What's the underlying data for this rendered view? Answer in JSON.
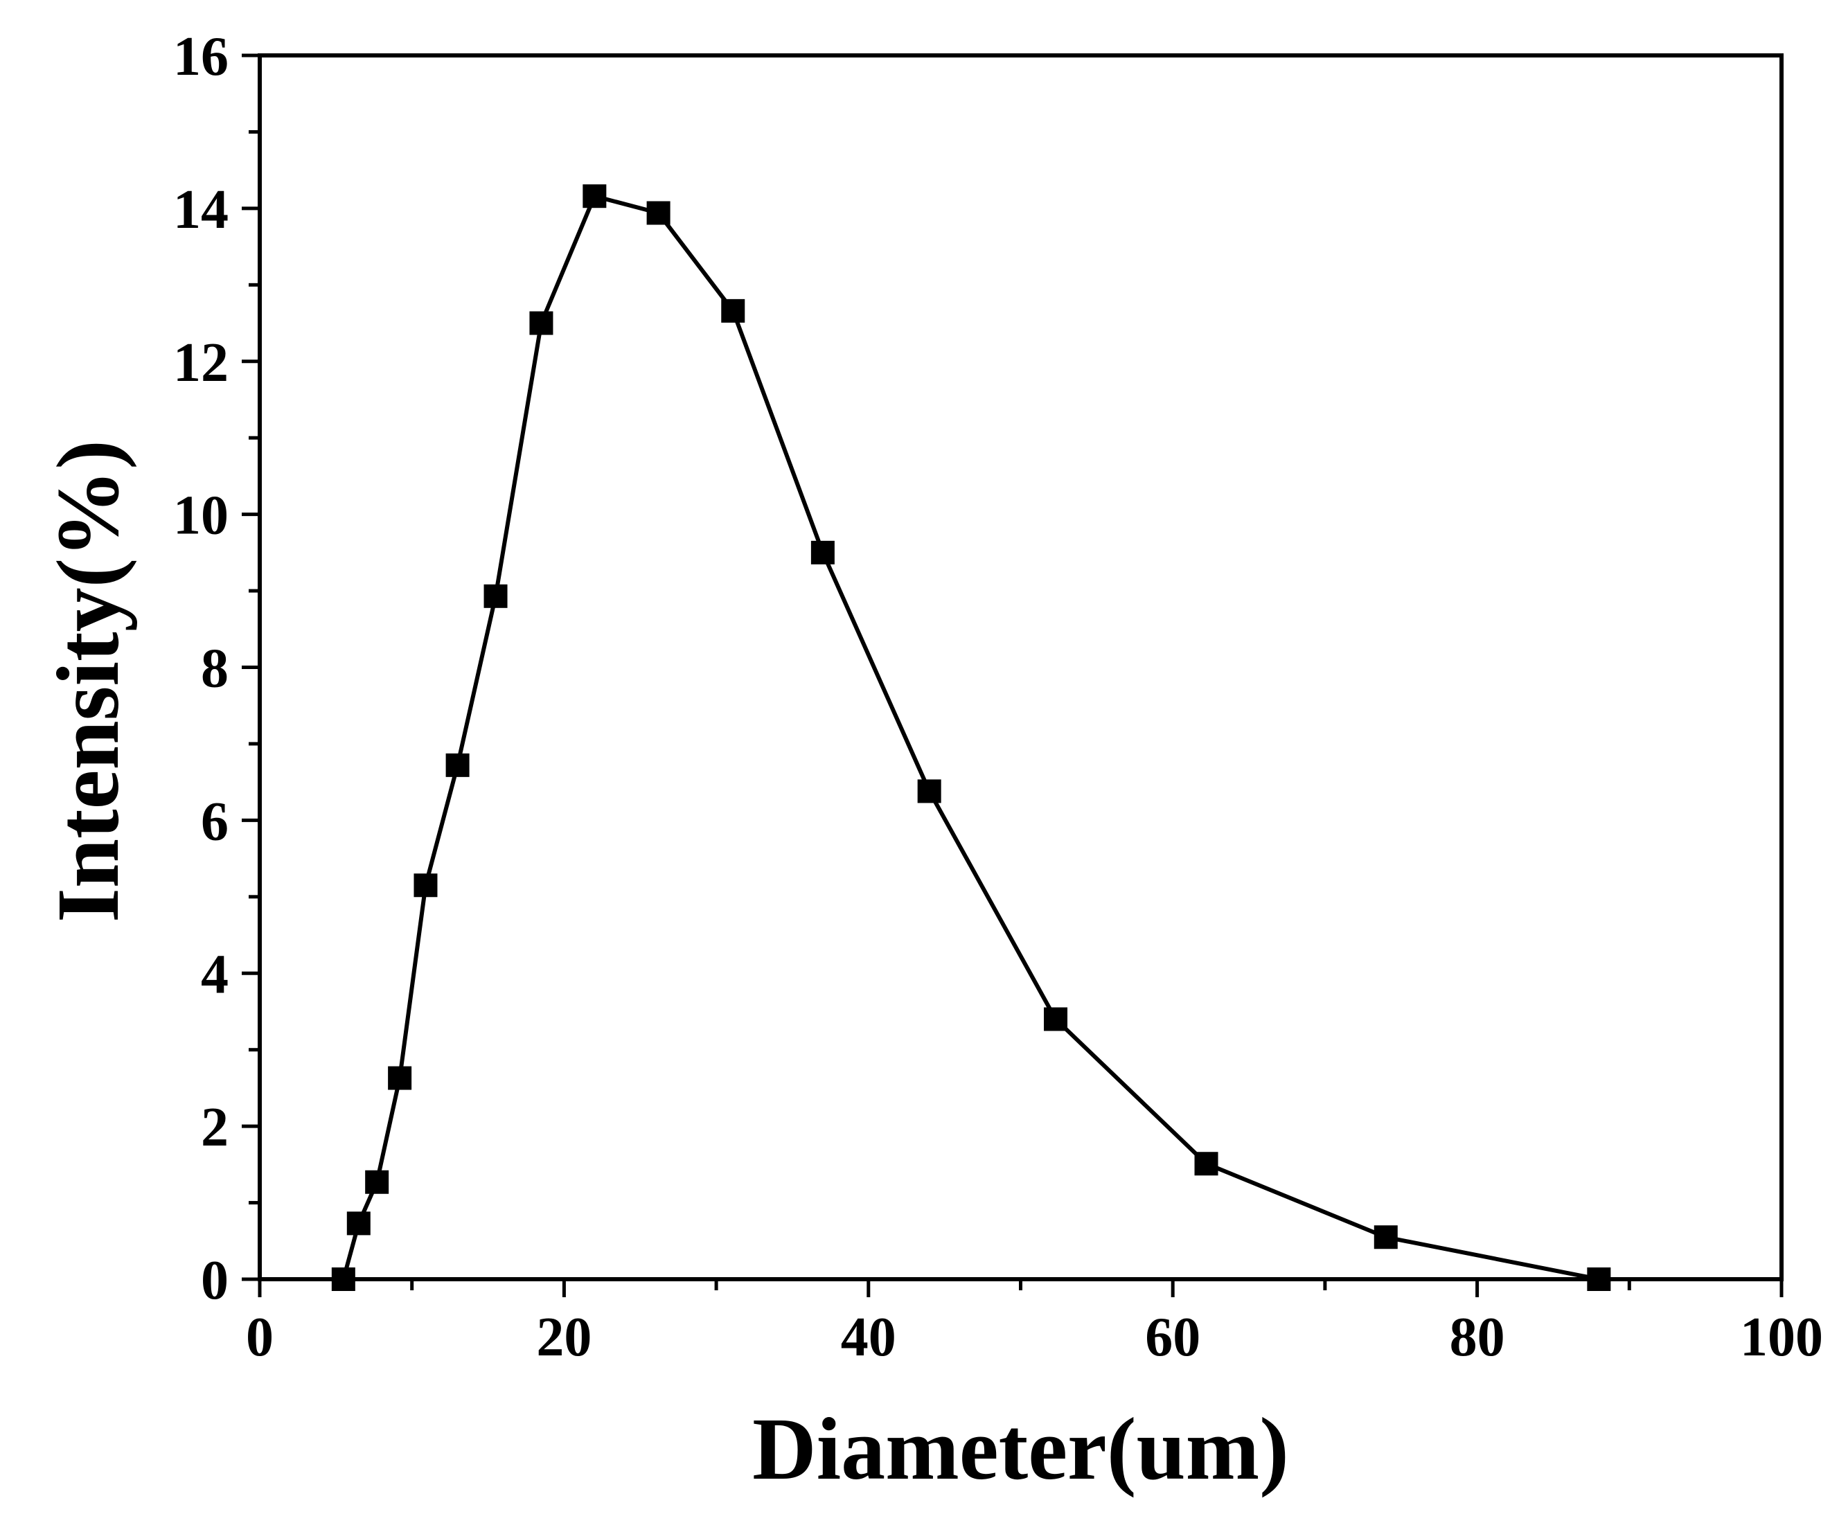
{
  "chart_data": {
    "type": "line",
    "title": "",
    "xlabel": "Diameter(um)",
    "ylabel": "Intensity(%)",
    "xlim": [
      0,
      100
    ],
    "ylim": [
      0,
      16
    ],
    "x_ticks": [
      0,
      20,
      40,
      60,
      80,
      100
    ],
    "x_tick_labels": [
      "0",
      "20",
      "40",
      "60",
      "80",
      "100"
    ],
    "y_ticks": [
      0,
      2,
      4,
      6,
      8,
      10,
      12,
      14,
      16
    ],
    "y_tick_labels": [
      "0",
      "2",
      "4",
      "6",
      "8",
      "10",
      "12",
      "14",
      "16"
    ],
    "grid": false,
    "legend": "none",
    "marker": "square",
    "line_color": "#000000",
    "marker_color": "#000000",
    "line_start": {
      "x": 0,
      "y": 0
    },
    "series": [
      {
        "x": [
          5.5,
          6.5,
          7.7,
          9.2,
          10.9,
          13.0,
          15.5,
          18.5,
          22.0,
          26.2,
          31.1,
          37.0,
          44.0,
          52.3,
          62.2,
          74.0,
          88.0
        ],
        "y": [
          0,
          0.73,
          1.27,
          2.63,
          5.15,
          6.72,
          8.93,
          12.5,
          14.16,
          13.94,
          12.66,
          9.5,
          6.38,
          3.4,
          1.51,
          0.55,
          0.0
        ]
      }
    ]
  }
}
